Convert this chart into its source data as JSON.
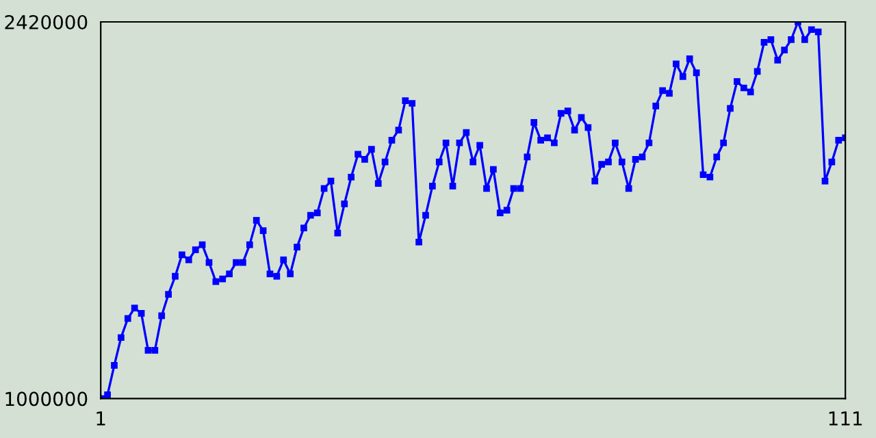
{
  "chart_data": {
    "type": "line",
    "x": [
      1,
      2,
      3,
      4,
      5,
      6,
      7,
      8,
      9,
      10,
      11,
      12,
      13,
      14,
      15,
      16,
      17,
      18,
      19,
      20,
      21,
      22,
      23,
      24,
      25,
      26,
      27,
      28,
      29,
      30,
      31,
      32,
      33,
      34,
      35,
      36,
      37,
      38,
      39,
      40,
      41,
      42,
      43,
      44,
      45,
      46,
      47,
      48,
      49,
      50,
      51,
      52,
      53,
      54,
      55,
      56,
      57,
      58,
      59,
      60,
      61,
      62,
      63,
      64,
      65,
      66,
      67,
      68,
      69,
      70,
      71,
      72,
      73,
      74,
      75,
      76,
      77,
      78,
      79,
      80,
      81,
      82,
      83,
      84,
      85,
      86,
      87,
      88,
      89,
      90,
      91,
      92,
      93,
      94,
      95,
      96,
      97,
      98,
      99,
      100,
      101,
      102,
      103,
      104,
      105,
      106,
      107,
      108,
      109,
      110,
      111
    ],
    "series": [
      {
        "color": "#0000ff",
        "values": [
          1000000,
          1014000,
          1125000,
          1230000,
          1302000,
          1341000,
          1321000,
          1182000,
          1182000,
          1312000,
          1393000,
          1461000,
          1542000,
          1523000,
          1561000,
          1580000,
          1513000,
          1441000,
          1451000,
          1470000,
          1513000,
          1513000,
          1580000,
          1672000,
          1633000,
          1470000,
          1461000,
          1523000,
          1470000,
          1571000,
          1643000,
          1691000,
          1700000,
          1792000,
          1820000,
          1624000,
          1734000,
          1835000,
          1921000,
          1902000,
          1940000,
          1811000,
          1892000,
          1974000,
          2012000,
          2123000,
          2113000,
          1590000,
          1691000,
          1801000,
          1892000,
          1964000,
          1801000,
          1964000,
          2003000,
          1892000,
          1955000,
          1792000,
          1864000,
          1700000,
          1710000,
          1792000,
          1792000,
          1911000,
          2041000,
          1974000,
          1983000,
          1964000,
          2075000,
          2084000,
          2012000,
          2060000,
          2022000,
          1820000,
          1883000,
          1892000,
          1964000,
          1892000,
          1792000,
          1902000,
          1911000,
          1964000,
          2103000,
          2161000,
          2151000,
          2262000,
          2214000,
          2281000,
          2228000,
          1844000,
          1835000,
          1911000,
          1964000,
          2094000,
          2195000,
          2171000,
          2156000,
          2233000,
          2343000,
          2353000,
          2276000,
          2314000,
          2353000,
          2420000,
          2353000,
          2391000,
          2382000,
          1820000,
          1892000,
          1974000,
          1983000
        ]
      }
    ],
    "xlim": [
      1,
      111
    ],
    "ylim": [
      1000000,
      2420000
    ],
    "xticks": [
      1,
      111
    ],
    "yticks": [
      1000000,
      2420000
    ],
    "marker": "square",
    "line_style": "solid"
  }
}
